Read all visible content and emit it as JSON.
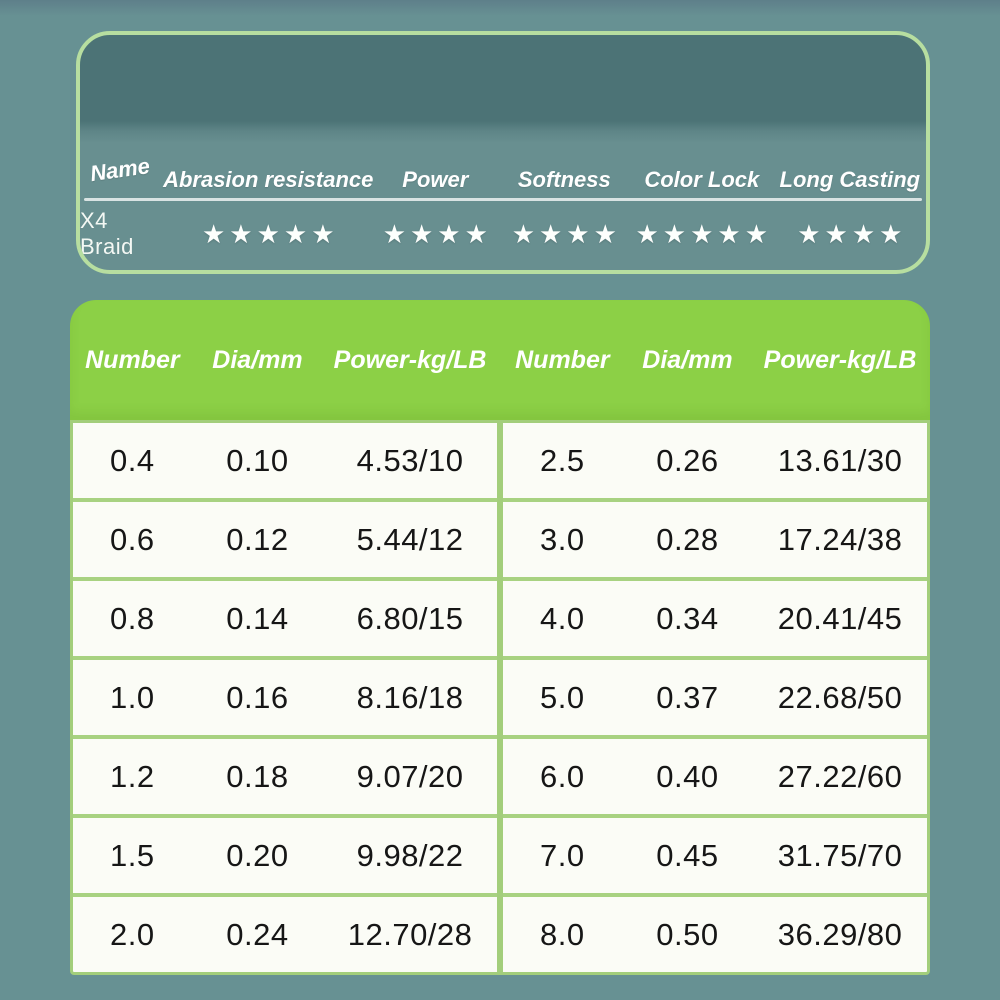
{
  "colors": {
    "background": "#679193",
    "ratings_card_border": "#B7DEA0",
    "ratings_header_band": "#4C7376",
    "ratings_body_band": "#688F90",
    "spec_header_green": "#8CD046",
    "table_line_green": "#A3CE7B",
    "table_background": "#FBFCF6",
    "text_light": "#FFFFFF",
    "text_dark": "#161616"
  },
  "ratings_card": {
    "row_label": "X4 Braid",
    "star_char": "★",
    "columns": [
      {
        "label": "Name",
        "stars": null
      },
      {
        "label": "Abrasion resistance",
        "stars": 5
      },
      {
        "label": "Power",
        "stars": 4
      },
      {
        "label": "Softness",
        "stars": 4
      },
      {
        "label": "Color Lock",
        "stars": 5
      },
      {
        "label": "Long Casting",
        "stars": 4
      }
    ]
  },
  "spec_table": {
    "column_headers": [
      "Number",
      "Dia/mm",
      "Power-kg/LB"
    ],
    "left_rows": [
      [
        "0.4",
        "0.10",
        "4.53/10"
      ],
      [
        "0.6",
        "0.12",
        "5.44/12"
      ],
      [
        "0.8",
        "0.14",
        "6.80/15"
      ],
      [
        "1.0",
        "0.16",
        "8.16/18"
      ],
      [
        "1.2",
        "0.18",
        "9.07/20"
      ],
      [
        "1.5",
        "0.20",
        "9.98/22"
      ],
      [
        "2.0",
        "0.24",
        "12.70/28"
      ]
    ],
    "right_rows": [
      [
        "2.5",
        "0.26",
        "13.61/30"
      ],
      [
        "3.0",
        "0.28",
        "17.24/38"
      ],
      [
        "4.0",
        "0.34",
        "20.41/45"
      ],
      [
        "5.0",
        "0.37",
        "22.68/50"
      ],
      [
        "6.0",
        "0.40",
        "27.22/60"
      ],
      [
        "7.0",
        "0.45",
        "31.75/70"
      ],
      [
        "8.0",
        "0.50",
        "36.29/80"
      ]
    ]
  },
  "chart_data": [
    {
      "type": "table",
      "title": "X4 Braid feature ratings",
      "columns": [
        "Name",
        "Abrasion resistance",
        "Power",
        "Softness",
        "Color Lock",
        "Long Casting"
      ],
      "rows": [
        [
          "X4 Braid",
          "5/5 stars",
          "4/5 stars",
          "4/5 stars",
          "5/5 stars",
          "4/5 stars"
        ]
      ]
    },
    {
      "type": "table",
      "title": "Line size specifications",
      "columns": [
        "Number",
        "Dia/mm",
        "Power-kg/LB",
        "Number",
        "Dia/mm",
        "Power-kg/LB"
      ],
      "rows": [
        [
          "0.4",
          "0.10",
          "4.53/10",
          "2.5",
          "0.26",
          "13.61/30"
        ],
        [
          "0.6",
          "0.12",
          "5.44/12",
          "3.0",
          "0.28",
          "17.24/38"
        ],
        [
          "0.8",
          "0.14",
          "6.80/15",
          "4.0",
          "0.34",
          "20.41/45"
        ],
        [
          "1.0",
          "0.16",
          "8.16/18",
          "5.0",
          "0.37",
          "22.68/50"
        ],
        [
          "1.2",
          "0.18",
          "9.07/20",
          "6.0",
          "0.40",
          "27.22/60"
        ],
        [
          "1.5",
          "0.20",
          "9.98/22",
          "7.0",
          "0.45",
          "31.75/70"
        ],
        [
          "2.0",
          "0.24",
          "12.70/28",
          "8.0",
          "0.50",
          "36.29/80"
        ]
      ]
    }
  ]
}
